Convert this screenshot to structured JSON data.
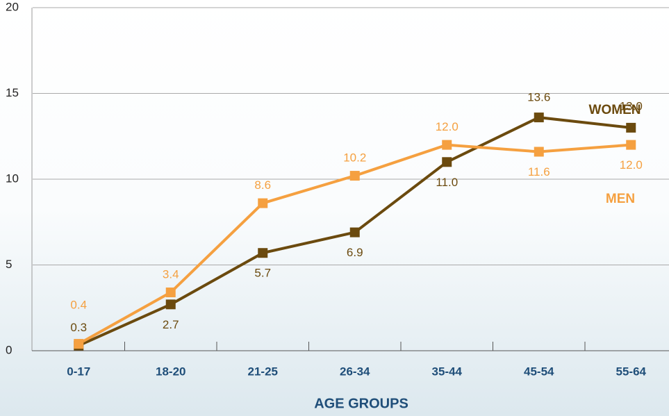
{
  "chart_data": {
    "type": "line",
    "x_label": "AGE GROUPS",
    "categories": [
      "0-17",
      "18-20",
      "21-25",
      "26-34",
      "35-44",
      "45-54",
      "55-64"
    ],
    "series": [
      {
        "name": "WOMEN",
        "color": "#6b4a0e",
        "values": [
          0.3,
          2.7,
          5.7,
          6.9,
          11,
          13.6,
          13
        ],
        "value_labels": [
          "0.3",
          "2.7",
          "5.7",
          "6.9",
          "11.0",
          "13.6",
          "13.0"
        ]
      },
      {
        "name": "MEN",
        "color": "#f5a040",
        "values": [
          0.4,
          3.4,
          8.6,
          10.2,
          12,
          11.6,
          12
        ],
        "value_labels": [
          "0.4",
          "3.4",
          "8.6",
          "10.2",
          "12.0",
          "11.6",
          "12.0"
        ]
      }
    ],
    "ylim": [
      0,
      20
    ],
    "yticks": [
      0,
      5,
      10,
      15,
      20
    ],
    "grid": true
  }
}
